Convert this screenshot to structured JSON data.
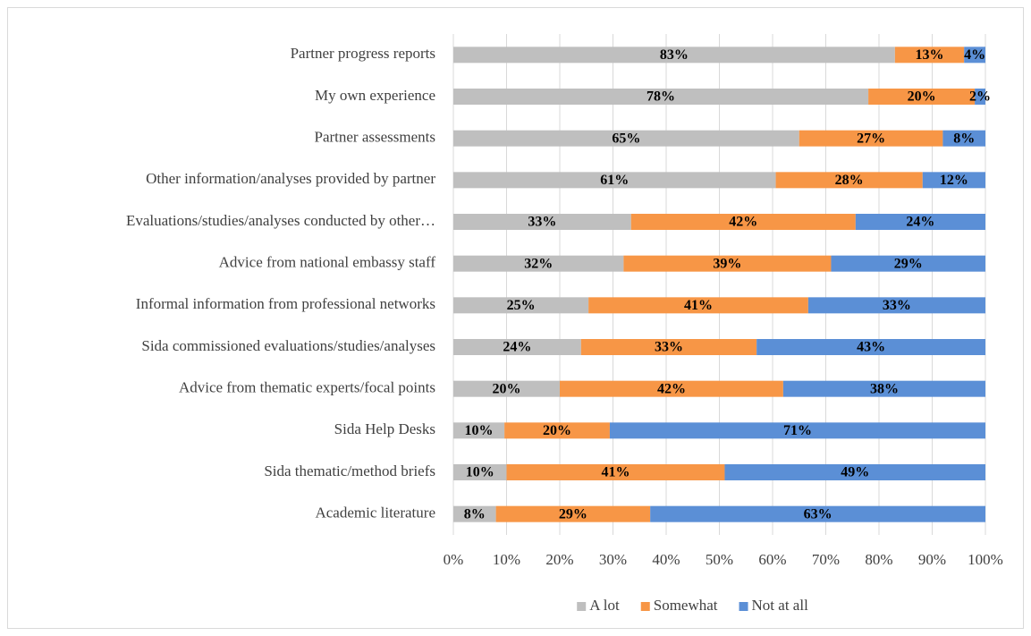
{
  "chart_data": {
    "type": "stacked-barh",
    "categories": [
      "Partner progress reports",
      "My own experience",
      "Partner assessments",
      "Other information/analyses provided by partner",
      "Evaluations/studies/analyses conducted by other…",
      "Advice from national embassy staff",
      "Informal information from professional networks",
      "Sida commissioned evaluations/studies/analyses",
      "Advice from thematic experts/focal points",
      "Sida Help Desks",
      "Sida thematic/method briefs",
      "Academic literature"
    ],
    "series": [
      {
        "name": "A lot",
        "color": "#bfbfbf",
        "values": [
          83,
          78,
          65,
          60.6,
          33.4,
          32,
          25.4,
          24,
          20,
          9.6,
          10,
          8
        ],
        "value_labels": [
          "83%",
          "78%",
          "65%",
          "61%",
          "33%",
          "32%",
          "25%",
          "24%",
          "20%",
          "10%",
          "10%",
          "8%"
        ]
      },
      {
        "name": "Somewhat",
        "color": "#f79646",
        "values": [
          13,
          20,
          27,
          27.6,
          42.2,
          39,
          41.3,
          33,
          42,
          19.8,
          41,
          29
        ],
        "value_labels": [
          "13%",
          "20%",
          "27%",
          "28%",
          "42%",
          "39%",
          "41%",
          "33%",
          "42%",
          "20%",
          "41%",
          "29%"
        ]
      },
      {
        "name": "Not at all",
        "color": "#5b8fd6",
        "values": [
          4,
          2,
          8,
          11.8,
          24.4,
          29,
          33.3,
          43,
          38,
          70.6,
          49,
          63
        ],
        "value_labels": [
          "4%",
          "2%",
          "8%",
          "12%",
          "24%",
          "29%",
          "33%",
          "43%",
          "38%",
          "71%",
          "49%",
          "63%"
        ]
      }
    ],
    "xlim": [
      0,
      100
    ],
    "xticks": [
      {
        "value": 0,
        "label": "0%"
      },
      {
        "value": 10,
        "label": "10%"
      },
      {
        "value": 20,
        "label": "20%"
      },
      {
        "value": 30,
        "label": "30%"
      },
      {
        "value": 40,
        "label": "40%"
      },
      {
        "value": 50,
        "label": "50%"
      },
      {
        "value": 60,
        "label": "60%"
      },
      {
        "value": 70,
        "label": "70%"
      },
      {
        "value": 80,
        "label": "80%"
      },
      {
        "value": 90,
        "label": "90%"
      },
      {
        "value": 100,
        "label": "100%"
      }
    ],
    "grid": true,
    "legend": "bottom"
  }
}
